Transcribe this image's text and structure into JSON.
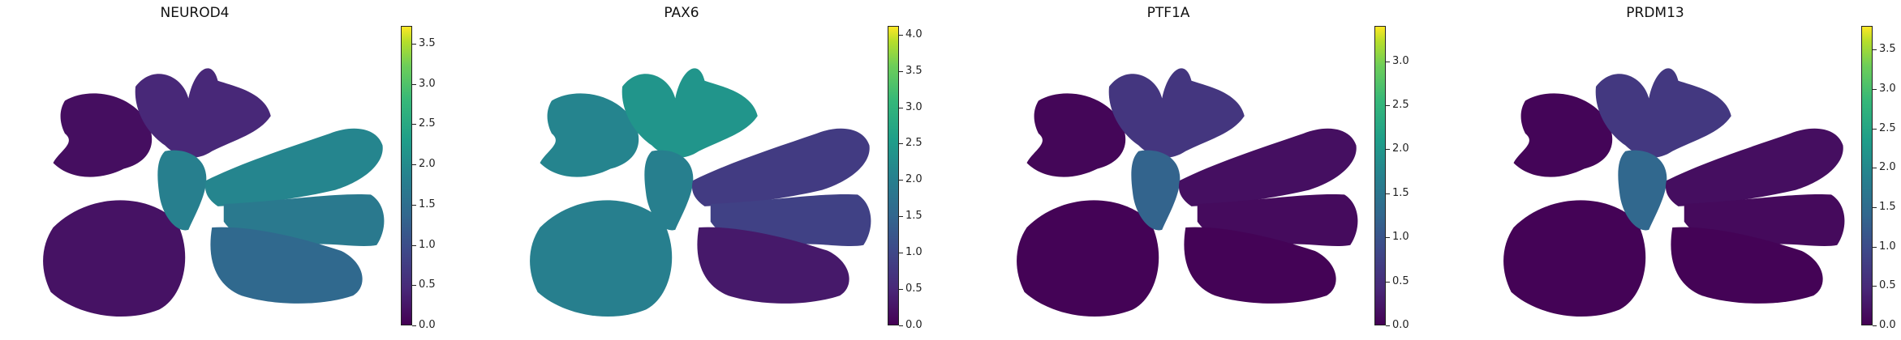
{
  "chart_data": [
    {
      "type": "scatter",
      "title": "NEUROD4",
      "colormap": "viridis",
      "color_range": [
        0,
        3.72
      ],
      "colorbar_ticks": [
        "0.0",
        "0.5",
        "1.0",
        "1.5",
        "2.0",
        "2.5",
        "3.0",
        "3.5"
      ],
      "expression_regions": {
        "left_lobes": 0.15,
        "upper_leaves": 0.45,
        "stem": 1.8,
        "right_shelf": 1.9,
        "right_wing": 1.7,
        "right_bottom": 1.4,
        "left_bottom": 0.2
      }
    },
    {
      "type": "scatter",
      "title": "PAX6",
      "colormap": "viridis",
      "color_range": [
        0,
        4.12
      ],
      "colorbar_ticks": [
        "0.0",
        "0.5",
        "1.0",
        "1.5",
        "2.0",
        "2.5",
        "3.0",
        "3.5",
        "4.0"
      ],
      "expression_regions": {
        "left_lobes": 2.1,
        "upper_leaves": 2.4,
        "stem": 2.0,
        "right_shelf": 0.8,
        "right_wing": 0.9,
        "right_bottom": 0.3,
        "left_bottom": 2.0
      }
    },
    {
      "type": "scatter",
      "title": "PTF1A",
      "colormap": "viridis",
      "color_range": [
        0,
        3.4
      ],
      "colorbar_ticks": [
        "0.0",
        "0.5",
        "1.0",
        "1.5",
        "2.0",
        "2.5",
        "3.0"
      ],
      "expression_regions": {
        "left_lobes": 0.05,
        "upper_leaves": 0.6,
        "stem": 1.2,
        "right_shelf": 0.15,
        "right_wing": 0.1,
        "right_bottom": 0.02,
        "left_bottom": 0.02
      }
    },
    {
      "type": "scatter",
      "title": "PRDM13",
      "colormap": "viridis",
      "color_range": [
        0,
        3.8
      ],
      "colorbar_ticks": [
        "0.0",
        "0.5",
        "1.0",
        "1.5",
        "2.0",
        "2.5",
        "3.0",
        "3.5"
      ],
      "expression_regions": {
        "left_lobes": 0.05,
        "upper_leaves": 0.7,
        "stem": 1.4,
        "right_shelf": 0.15,
        "right_wing": 0.1,
        "right_bottom": 0.02,
        "left_bottom": 0.02
      }
    }
  ]
}
